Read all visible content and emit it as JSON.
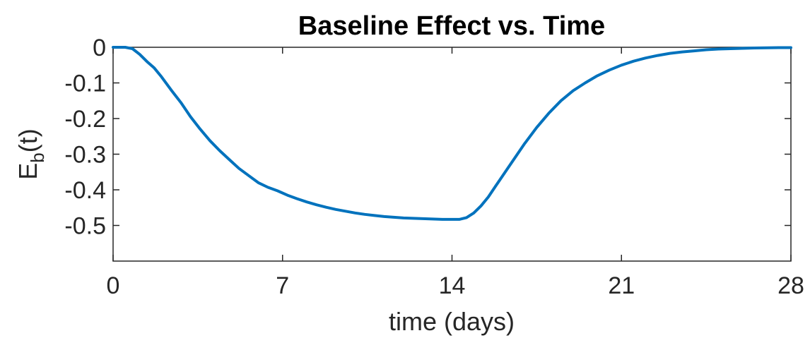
{
  "chart_data": {
    "type": "line",
    "title": "Baseline Effect vs. Time",
    "xlabel": "time (days)",
    "ylabel": {
      "base": "E",
      "subscript": "b",
      "suffix": "(t)"
    },
    "xlim": [
      0,
      28
    ],
    "ylim": [
      -0.6,
      0
    ],
    "xticks": [
      0,
      7,
      14,
      21,
      28
    ],
    "xtick_labels": [
      "0",
      "7",
      "14",
      "21",
      "28"
    ],
    "yticks": [
      0,
      -0.1,
      -0.2,
      -0.3,
      -0.4,
      -0.5
    ],
    "ytick_labels": [
      "0",
      "-0.1",
      "-0.2",
      "-0.3",
      "-0.4",
      "-0.5"
    ],
    "grid": false,
    "box": true,
    "series": [
      {
        "color": "#0072BD",
        "x": [
          0,
          0.5,
          0.8,
          1.1,
          1.4,
          1.7,
          2.0,
          2.4,
          2.8,
          3.2,
          3.6,
          4.0,
          4.4,
          4.8,
          5.2,
          5.6,
          6.0,
          6.4,
          6.8,
          7.2,
          7.6,
          8.0,
          8.4,
          8.8,
          9.2,
          9.6,
          10.0,
          10.4,
          10.8,
          11.2,
          11.6,
          12.0,
          12.4,
          12.8,
          13.2,
          13.6,
          14.0,
          14.3,
          14.6,
          14.9,
          15.2,
          15.5,
          15.8,
          16.2,
          16.6,
          17.0,
          17.5,
          18.0,
          18.5,
          19.0,
          19.5,
          20.0,
          20.5,
          21.0,
          21.5,
          22.0,
          22.5,
          23.0,
          23.5,
          24.0,
          24.5,
          25.0,
          25.5,
          26.0,
          26.5,
          27.0,
          27.5,
          28.0
        ],
        "y": [
          0,
          0,
          -0.004,
          -0.02,
          -0.04,
          -0.058,
          -0.083,
          -0.12,
          -0.155,
          -0.195,
          -0.23,
          -0.262,
          -0.29,
          -0.315,
          -0.34,
          -0.36,
          -0.38,
          -0.393,
          -0.403,
          -0.415,
          -0.425,
          -0.434,
          -0.442,
          -0.449,
          -0.455,
          -0.46,
          -0.465,
          -0.469,
          -0.472,
          -0.475,
          -0.477,
          -0.479,
          -0.48,
          -0.481,
          -0.482,
          -0.483,
          -0.483,
          -0.483,
          -0.478,
          -0.465,
          -0.445,
          -0.42,
          -0.39,
          -0.35,
          -0.31,
          -0.27,
          -0.225,
          -0.185,
          -0.15,
          -0.122,
          -0.1,
          -0.08,
          -0.064,
          -0.05,
          -0.039,
          -0.03,
          -0.023,
          -0.017,
          -0.013,
          -0.01,
          -0.007,
          -0.005,
          -0.004,
          -0.003,
          -0.002,
          -0.0015,
          -0.001,
          -0.001
        ]
      }
    ]
  }
}
